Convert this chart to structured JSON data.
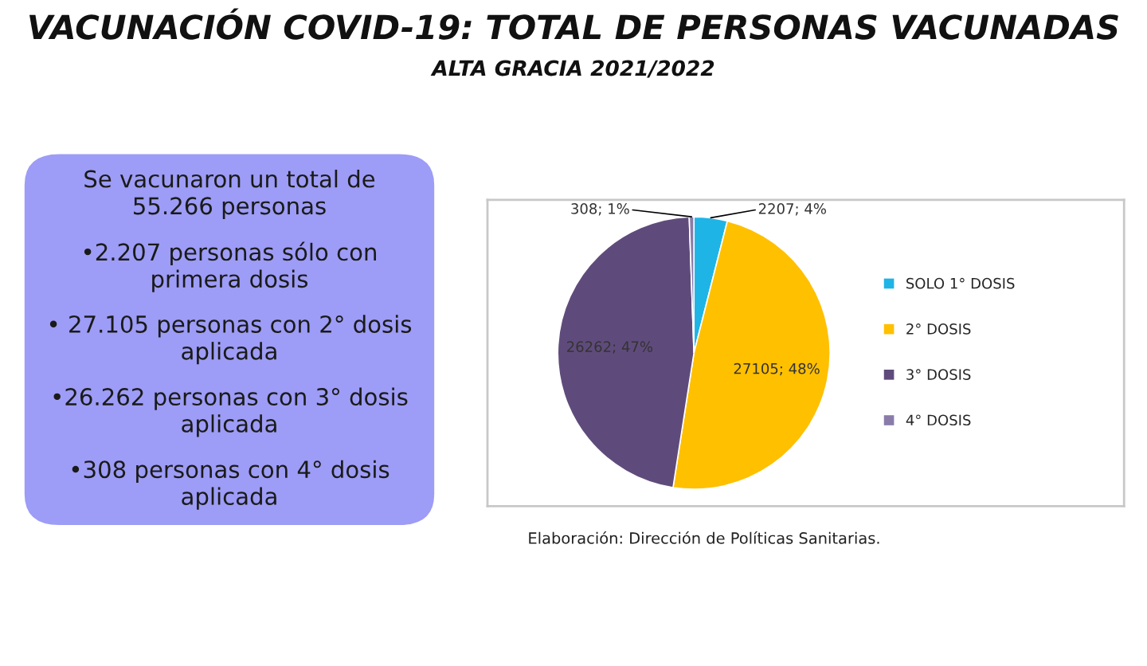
{
  "chart_data": [
    {
      "type": "other",
      "annotations": [
        "Se vacunaron un total de\n55.266 personas",
        "•2.207 personas sólo con\nprimera dosis",
        "• 27.105 personas con 2° dosis\naplicada",
        "•26.262 personas con 3° dosis\naplicada",
        "•308 personas con 4° dosis\naplicada"
      ]
    },
    {
      "type": "pie",
      "title": "VACUNACIÓN COVID-19: TOTAL DE PERSONAS VACUNADAS",
      "subtitle": "ALTA GRACIA 2021/2022",
      "categories": [
        "SOLO 1° DOSIS",
        "2° DOSIS",
        "3° DOSIS",
        "4° DOSIS"
      ],
      "values": [
        2207,
        27105,
        26262,
        308
      ],
      "colors": [
        "#1fb4e6",
        "#ffc000",
        "#5f4b7b",
        "#8a7caa"
      ],
      "value_labels": [
        "2207; 4%",
        "27105; 48%",
        "26262; 47%",
        "308; 1%"
      ],
      "legend": "right",
      "annotations": [
        "Elaboración: Dirección de Políticas Sanitarias."
      ]
    }
  ]
}
